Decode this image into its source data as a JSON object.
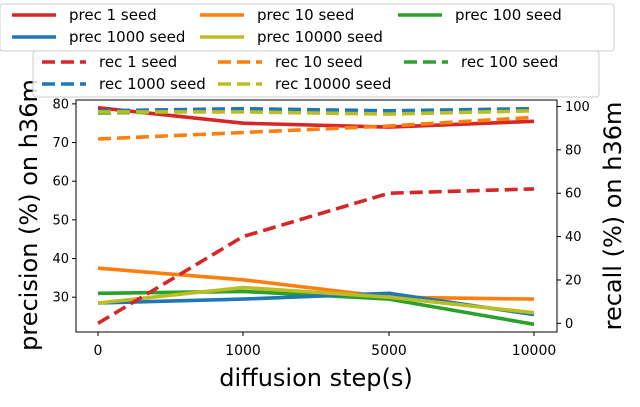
{
  "chart_data": {
    "type": "line",
    "x_categories": [
      "0",
      "1000",
      "5000",
      "10000"
    ],
    "xlabel": "diffusion step(s)",
    "ylabel_left": "precision (%) on h36m",
    "ylabel_right": "recall (%) on h36m",
    "left_axis": {
      "ylim": [
        21,
        81
      ],
      "ticks": [
        30,
        40,
        50,
        60,
        70,
        80
      ]
    },
    "right_axis": {
      "ylim": [
        -4,
        103
      ],
      "ticks": [
        0,
        20,
        40,
        60,
        80,
        100
      ]
    },
    "precision_series": [
      {
        "name": "prec 1 seed",
        "color": "#d62728",
        "values": [
          79.0,
          75.0,
          74.0,
          75.5
        ]
      },
      {
        "name": "prec 10 seed",
        "color": "#ff7f0e",
        "values": [
          37.5,
          34.5,
          30.0,
          29.5
        ]
      },
      {
        "name": "prec 100 seed",
        "color": "#2ca02c",
        "values": [
          31.0,
          31.5,
          29.5,
          23.0
        ]
      },
      {
        "name": "prec 1000 seed",
        "color": "#1f77b4",
        "values": [
          28.5,
          29.5,
          31.0,
          25.5
        ]
      },
      {
        "name": "prec 10000 seed",
        "color": "#bcbd22",
        "values": [
          28.5,
          32.5,
          30.0,
          26.0
        ]
      }
    ],
    "recall_series": [
      {
        "name": "rec 1 seed",
        "color": "#d62728",
        "values": [
          0,
          40,
          60,
          62
        ]
      },
      {
        "name": "rec 10 seed",
        "color": "#ff7f0e",
        "values": [
          85,
          88,
          91,
          95
        ]
      },
      {
        "name": "rec 100 seed",
        "color": "#2ca02c",
        "values": [
          97,
          98,
          97,
          99
        ]
      },
      {
        "name": "rec 1000 seed",
        "color": "#1f77b4",
        "values": [
          98,
          99,
          98,
          99
        ]
      },
      {
        "name": "rec 10000 seed",
        "color": "#bcbd22",
        "values": [
          97.5,
          97.5,
          96.5,
          98
        ]
      }
    ]
  }
}
